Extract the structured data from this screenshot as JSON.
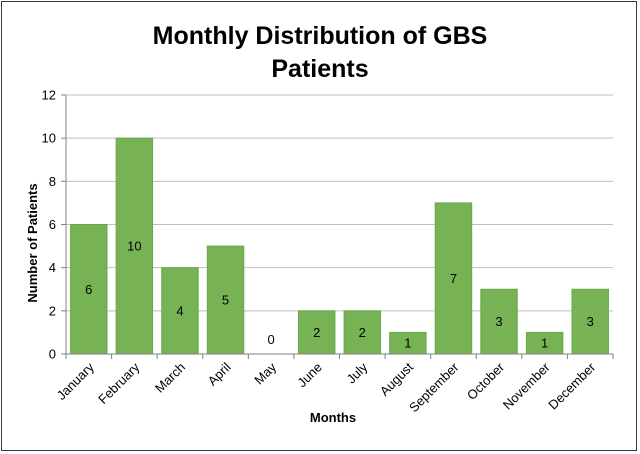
{
  "chart_data": {
    "type": "bar",
    "title_lines": [
      "Monthly Distribution of GBS",
      "Patients"
    ],
    "xlabel": "Months",
    "ylabel": "Number of Patients",
    "categories": [
      "January",
      "February",
      "March",
      "April",
      "May",
      "June",
      "July",
      "August",
      "September",
      "October",
      "November",
      "December"
    ],
    "values": [
      6,
      10,
      4,
      5,
      0,
      2,
      2,
      1,
      7,
      3,
      1,
      3
    ],
    "ylim": [
      0,
      12
    ],
    "yticks": [
      0,
      2,
      4,
      6,
      8,
      10,
      12
    ],
    "grid": true,
    "legend": "none",
    "bar_color": "#77b255",
    "bar_edge_color": "#6aa84f",
    "grid_color": "#bfbfbf"
  }
}
